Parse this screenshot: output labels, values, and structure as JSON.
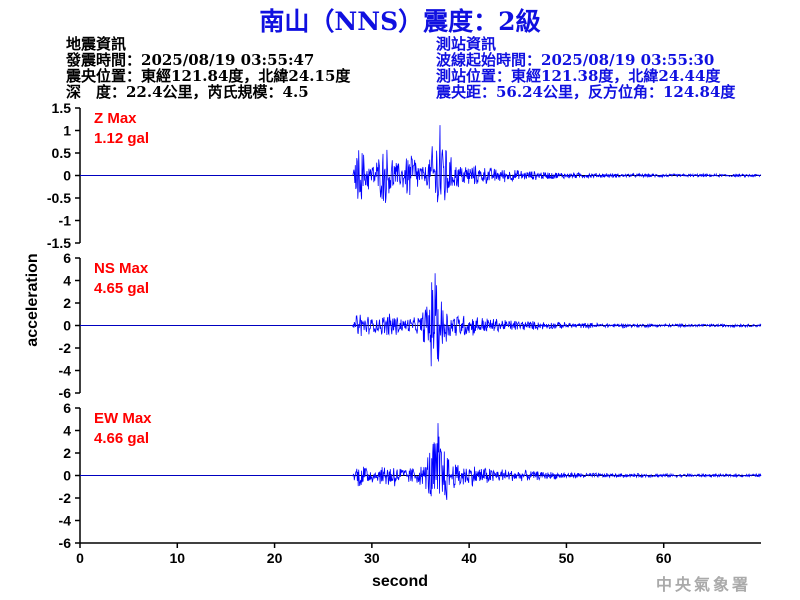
{
  "title": "南山（NNS）震度：2級",
  "earthquake_info": {
    "heading": "地震資訊",
    "origin_time": "發震時間：2025/08/19 03:55:47",
    "epicenter": "震央位置：東經121.84度，北緯24.15度",
    "depth_magnitude": "深　度：22.4公里，芮氏規模：4.5"
  },
  "station_info": {
    "heading": "測站資訊",
    "start_time": "波線起始時間：2025/08/19 03:55:30",
    "location": "測站位置：東經121.38度，北緯24.44度",
    "distance": "震央距：56.24公里，反方位角：124.84度"
  },
  "logo": "中央氣象署",
  "chart_data": [
    {
      "type": "line",
      "component": "Z",
      "label": "Z Max",
      "max_label": "1.12 gal",
      "peak": 1.12,
      "ylim": [
        -1.5,
        1.5
      ],
      "yticks": [
        "1.5",
        "1",
        "0.5",
        "0",
        "-0.5",
        "-1",
        "-1.5"
      ],
      "onset_s": 28,
      "peak_s": 37,
      "color": "#0000ff"
    },
    {
      "type": "line",
      "component": "NS",
      "label": "NS Max",
      "max_label": "4.65 gal",
      "peak": 4.65,
      "ylim": [
        -6,
        6
      ],
      "yticks": [
        "6",
        "4",
        "2",
        "0",
        "-2",
        "-4",
        "-6"
      ],
      "onset_s": 28,
      "peak_s": 36.5,
      "color": "#0000ff"
    },
    {
      "type": "line",
      "component": "EW",
      "label": "EW Max",
      "max_label": "4.66 gal",
      "peak": 4.66,
      "ylim": [
        -6,
        6
      ],
      "yticks": [
        "6",
        "4",
        "2",
        "0",
        "-2",
        "-4",
        "-6"
      ],
      "onset_s": 28,
      "peak_s": 36.8,
      "color": "#0000ff"
    }
  ],
  "xaxis": {
    "label": "second",
    "ticks": [
      "0",
      "10",
      "20",
      "30",
      "40",
      "50",
      "60"
    ],
    "xlim": [
      0,
      70
    ]
  },
  "yaxis": {
    "label": "acceleration"
  },
  "colors": {
    "title": "#1010e0",
    "annotation": "#ff0000",
    "trace": "#0000ff"
  }
}
